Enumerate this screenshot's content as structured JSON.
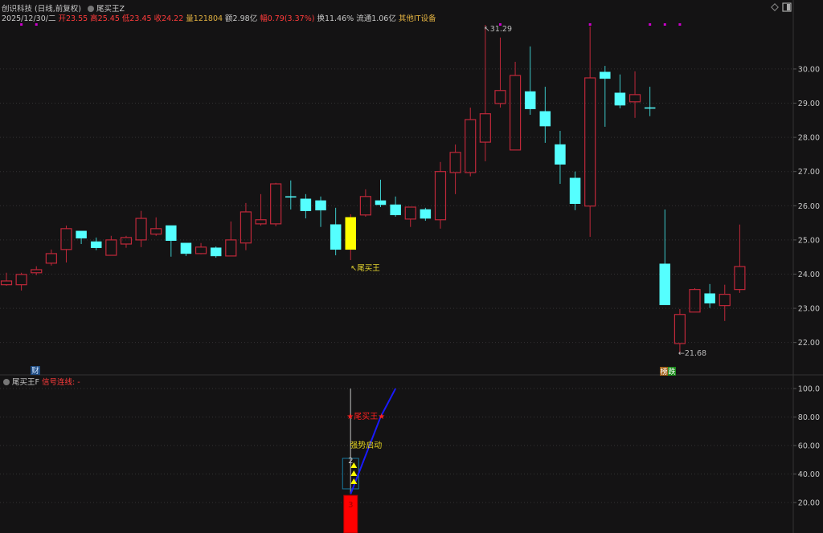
{
  "header": {
    "stock_name": "创识科技",
    "period": "(日线,前复权)",
    "indicator": "尾买王Z",
    "date": "2025/12/30/二",
    "open": "开23.55",
    "high": "高25.45",
    "low": "低23.45",
    "close": "收24.22",
    "volume": "量121804",
    "amount": "额2.98亿",
    "change": "幅0.79(3.37%)",
    "turnover": "换11.46%",
    "float_cap": "流通1.06亿",
    "sector": "其他IT设备"
  },
  "lower_header": {
    "indicator": "尾买王F",
    "signal": "信号连线: -"
  },
  "colors": {
    "up": "#c0283a",
    "down": "#55ffff",
    "signal_candle": "#ffff00",
    "marker": "#cc00cc",
    "blue_line": "#1a1aff",
    "red_bar": "#ff0000"
  },
  "chart_data": [
    {
      "type": "candlestick",
      "ylim": [
        21.1,
        31.36
      ],
      "yticks": [
        "30.00",
        "29.00",
        "28.00",
        "27.00",
        "26.00",
        "25.00",
        "24.00",
        "23.00",
        "22.00"
      ],
      "grid": true,
      "candles": [
        [
          23.69,
          24.04,
          23.66,
          23.8
        ],
        [
          23.69,
          24.04,
          23.52,
          23.99
        ],
        [
          24.04,
          24.23,
          23.97,
          24.13
        ],
        [
          24.32,
          24.72,
          24.25,
          24.6
        ],
        [
          24.72,
          25.42,
          24.34,
          25.33
        ],
        [
          25.26,
          25.26,
          24.88,
          25.05
        ],
        [
          24.95,
          25.07,
          24.7,
          24.77
        ],
        [
          24.55,
          25.12,
          24.55,
          25.0
        ],
        [
          24.88,
          25.12,
          24.77,
          25.07
        ],
        [
          25.0,
          25.85,
          24.79,
          25.63
        ],
        [
          25.17,
          25.66,
          25.12,
          25.33
        ],
        [
          25.42,
          25.42,
          24.51,
          24.98
        ],
        [
          24.91,
          24.91,
          24.53,
          24.6
        ],
        [
          24.6,
          24.91,
          24.58,
          24.79
        ],
        [
          24.77,
          24.81,
          24.48,
          24.53
        ],
        [
          24.53,
          25.54,
          24.53,
          25.0
        ],
        [
          24.91,
          26.08,
          24.7,
          25.82
        ],
        [
          25.47,
          26.34,
          25.42,
          25.59
        ],
        [
          25.47,
          26.67,
          25.4,
          26.64
        ],
        [
          26.27,
          26.74,
          25.89,
          26.27
        ],
        [
          26.2,
          26.34,
          25.63,
          25.85
        ],
        [
          26.15,
          26.27,
          25.38,
          25.87
        ],
        [
          25.45,
          25.94,
          24.55,
          24.72
        ],
        [
          24.72,
          25.75,
          24.41,
          25.66
        ],
        [
          25.73,
          26.48,
          25.68,
          26.27
        ],
        [
          26.15,
          26.76,
          25.96,
          26.03
        ],
        [
          26.03,
          26.27,
          25.68,
          25.73
        ],
        [
          25.61,
          25.96,
          25.38,
          25.96
        ],
        [
          25.89,
          25.94,
          25.56,
          25.63
        ],
        [
          25.59,
          27.28,
          25.33,
          27.0
        ],
        [
          26.97,
          27.79,
          26.34,
          27.56
        ],
        [
          26.97,
          28.87,
          26.86,
          28.52
        ],
        [
          27.86,
          31.29,
          27.3,
          28.69
        ],
        [
          28.99,
          30.92,
          28.87,
          29.37
        ],
        [
          27.63,
          30.21,
          27.63,
          29.81
        ],
        [
          29.34,
          30.66,
          28.66,
          28.83
        ],
        [
          28.76,
          29.48,
          27.84,
          28.33
        ],
        [
          27.79,
          28.19,
          26.64,
          27.21
        ],
        [
          26.81,
          27.0,
          25.87,
          26.06
        ],
        [
          25.99,
          31.24,
          25.09,
          29.74
        ],
        [
          29.91,
          30.09,
          28.31,
          29.72
        ],
        [
          29.3,
          29.84,
          28.85,
          28.94
        ],
        [
          29.04,
          29.93,
          28.57,
          29.25
        ],
        [
          28.87,
          29.48,
          28.62,
          28.87
        ],
        [
          24.3,
          25.89,
          23.1,
          23.1
        ],
        [
          21.97,
          22.98,
          21.68,
          22.82
        ],
        [
          22.89,
          23.59,
          22.89,
          23.55
        ],
        [
          23.43,
          23.71,
          23.01,
          23.15
        ],
        [
          23.08,
          23.69,
          22.63,
          23.41
        ],
        [
          23.55,
          25.45,
          23.45,
          24.22
        ]
      ],
      "candle_format": [
        "open",
        "high",
        "low",
        "close"
      ],
      "signal_candle_index": 23,
      "top_marker_indices": [
        1,
        2,
        33,
        39,
        43,
        44,
        45
      ],
      "annotations": {
        "signal_label": "↖尾买王",
        "max_label": "↖31.29",
        "min_label": "←21.68",
        "fin_badge": "财",
        "list_badge_1": "榜",
        "list_badge_2": "跌"
      }
    },
    {
      "type": "indicator",
      "ylim": [
        -1.4,
        103.4
      ],
      "yticks": [
        "100.0",
        "80.00",
        "60.00",
        "40.00",
        "20.00"
      ],
      "grid": true,
      "signal_index": 23,
      "red_bar_value": 25,
      "gray_line": [
        26,
        100
      ],
      "box": [
        29.6,
        51
      ],
      "blue_line": [
        [
          23,
          26
        ],
        [
          24,
          53
        ],
        [
          25,
          80
        ],
        [
          26,
          100
        ]
      ],
      "labels": {
        "star_label": "★尾买王★",
        "strong_start": "强势启动",
        "count_top": "2",
        "count_bar": "3"
      }
    }
  ]
}
